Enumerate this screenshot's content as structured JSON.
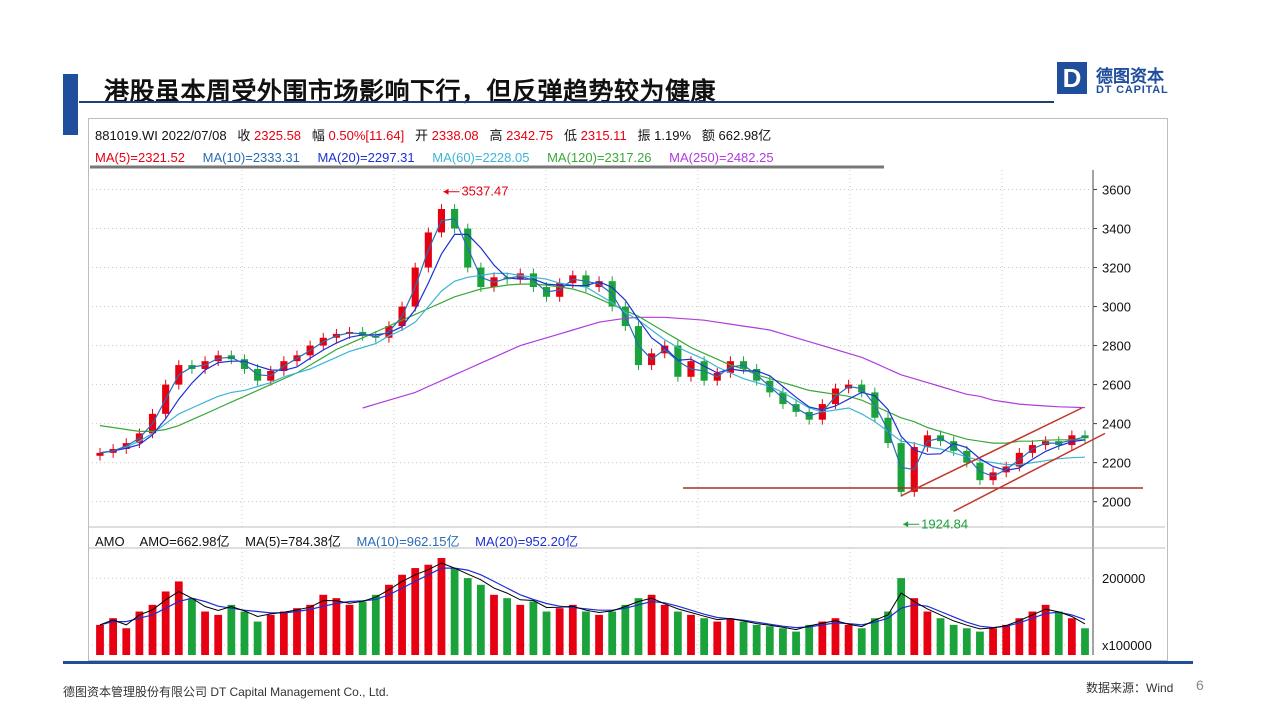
{
  "slide": {
    "title": "港股虽本周受外围市场影响下行，但反弹趋势较为健康",
    "logo_cn": "德图资本",
    "logo_en": "DT CAPITAL",
    "logo_mark": "D",
    "footer_company": "德图资本管理股份有限公司  DT Capital Management  Co., Ltd.",
    "footer_source": "数据来源：Wind",
    "page_number": "6",
    "accent_color": "#1f4e9c"
  },
  "quote": {
    "code_date": "881019.WI 2022/07/08",
    "close_label": "收",
    "close": "2325.58",
    "change_label": "幅",
    "change": "0.50%[11.64]",
    "open_label": "开",
    "open": "2338.08",
    "high_label": "高",
    "high": "2342.75",
    "low_label": "低",
    "low": "2315.11",
    "amplitude_label": "振",
    "amplitude": "1.19%",
    "amount_label": "额",
    "amount": "662.98亿"
  },
  "ma": {
    "ma5": "MA(5)=2321.52",
    "ma10": "MA(10)=2333.31",
    "ma20": "MA(20)=2297.31",
    "ma60": "MA(60)=2228.05",
    "ma120": "MA(120)=2317.26",
    "ma250": "MA(250)=2482.25"
  },
  "volume_header": {
    "label": "AMO",
    "amo": "AMO=662.98亿",
    "ma5": "MA(5)=784.38亿",
    "ma10": "MA(10)=962.15亿",
    "ma20": "MA(20)=952.20亿"
  },
  "chart_data": {
    "type": "line",
    "price": {
      "yticks": [
        2000,
        2200,
        2400,
        2600,
        2800,
        3000,
        3200,
        3400,
        3600
      ],
      "ylim": [
        1870,
        3700
      ],
      "close": [
        2250,
        2270,
        2300,
        2350,
        2450,
        2600,
        2700,
        2680,
        2720,
        2750,
        2730,
        2680,
        2620,
        2670,
        2720,
        2750,
        2800,
        2840,
        2860,
        2870,
        2850,
        2840,
        2900,
        3000,
        3200,
        3380,
        3500,
        3400,
        3200,
        3100,
        3150,
        3140,
        3170,
        3100,
        3050,
        3120,
        3160,
        3100,
        3130,
        3000,
        2900,
        2700,
        2760,
        2800,
        2640,
        2720,
        2620,
        2660,
        2720,
        2680,
        2620,
        2560,
        2500,
        2460,
        2420,
        2500,
        2580,
        2600,
        2560,
        2430,
        2300,
        2050,
        2280,
        2340,
        2310,
        2260,
        2200,
        2110,
        2150,
        2180,
        2250,
        2290,
        2310,
        2290,
        2340,
        2325
      ],
      "ma60": [
        2250,
        2260,
        2280,
        2310,
        2350,
        2400,
        2450,
        2480,
        2510,
        2540,
        2560,
        2570,
        2590,
        2610,
        2640,
        2660,
        2680,
        2710,
        2740,
        2770,
        2790,
        2810,
        2850,
        2880,
        2920,
        3000,
        3080,
        3130,
        3150,
        3160,
        3170,
        3170,
        3160,
        3150,
        3140,
        3120,
        3110,
        3100,
        3060,
        3020,
        2970,
        2930,
        2880,
        2830,
        2790,
        2760,
        2730,
        2690,
        2660,
        2630,
        2610,
        2590,
        2560,
        2520,
        2480,
        2460,
        2470,
        2480,
        2450,
        2410,
        2360,
        2310,
        2300,
        2280,
        2270,
        2250,
        2230,
        2210,
        2200,
        2190,
        2190,
        2200,
        2210,
        2220,
        2225,
        2228
      ],
      "ma120": [
        2390,
        2380,
        2370,
        2360,
        2360,
        2370,
        2390,
        2420,
        2450,
        2480,
        2510,
        2540,
        2570,
        2600,
        2630,
        2660,
        2700,
        2740,
        2780,
        2810,
        2840,
        2870,
        2900,
        2930,
        2960,
        2990,
        3020,
        3050,
        3070,
        3090,
        3100,
        3110,
        3115,
        3115,
        3110,
        3100,
        3090,
        3070,
        3040,
        3010,
        2980,
        2950,
        2910,
        2870,
        2830,
        2790,
        2760,
        2730,
        2700,
        2680,
        2650,
        2630,
        2610,
        2590,
        2570,
        2560,
        2550,
        2540,
        2520,
        2490,
        2460,
        2430,
        2410,
        2380,
        2360,
        2340,
        2320,
        2310,
        2300,
        2300,
        2310,
        2310,
        2315,
        2317,
        2317,
        2317
      ],
      "ma250": [
        null,
        null,
        null,
        null,
        null,
        null,
        null,
        null,
        null,
        null,
        null,
        null,
        null,
        null,
        null,
        null,
        null,
        null,
        null,
        null,
        2480,
        2500,
        2520,
        2540,
        2560,
        2590,
        2620,
        2650,
        2680,
        2710,
        2740,
        2770,
        2800,
        2820,
        2840,
        2860,
        2880,
        2900,
        2920,
        2930,
        2940,
        2945,
        2945,
        2945,
        2940,
        2935,
        2930,
        2920,
        2910,
        2900,
        2890,
        2880,
        2860,
        2840,
        2820,
        2800,
        2780,
        2760,
        2740,
        2710,
        2680,
        2650,
        2630,
        2610,
        2590,
        2570,
        2550,
        2540,
        2520,
        2510,
        2500,
        2495,
        2490,
        2486,
        2484,
        2482
      ],
      "annotations": [
        {
          "text": "3537.47",
          "value": 3537.47,
          "index": 26
        },
        {
          "text": "1924.84",
          "value": 1924.84,
          "index": 61
        }
      ],
      "support_level": 2070,
      "channel": {
        "upper": [
          [
            61,
            2030
          ],
          [
            74,
            2480
          ]
        ],
        "lower": [
          [
            65,
            1950
          ],
          [
            75,
            2350
          ]
        ]
      }
    },
    "volume": {
      "yticks": [
        100000,
        200000
      ],
      "ytick_labels": [
        "x100000",
        "200000"
      ],
      "ylim": [
        85000,
        245000
      ],
      "values": [
        130000,
        140000,
        125000,
        150000,
        160000,
        180000,
        195000,
        170000,
        150000,
        145000,
        160000,
        150000,
        135000,
        145000,
        150000,
        155000,
        160000,
        175000,
        170000,
        160000,
        165000,
        175000,
        190000,
        205000,
        215000,
        220000,
        230000,
        215000,
        200000,
        190000,
        175000,
        170000,
        160000,
        165000,
        150000,
        155000,
        160000,
        150000,
        145000,
        150000,
        160000,
        170000,
        175000,
        160000,
        150000,
        145000,
        140000,
        135000,
        140000,
        135000,
        130000,
        128000,
        125000,
        120000,
        130000,
        135000,
        140000,
        130000,
        125000,
        140000,
        150000,
        200000,
        170000,
        150000,
        140000,
        130000,
        125000,
        120000,
        125000,
        130000,
        140000,
        150000,
        160000,
        150000,
        140000,
        125000
      ],
      "ma": [
        130000,
        135000,
        135000,
        140000,
        145000,
        155000,
        165000,
        170000,
        165000,
        158000,
        155000,
        152000,
        150000,
        148000,
        148000,
        150000,
        153000,
        158000,
        162000,
        165000,
        166000,
        168000,
        175000,
        185000,
        195000,
        205000,
        215000,
        215000,
        212000,
        205000,
        195000,
        185000,
        175000,
        168000,
        162000,
        158000,
        156000,
        154000,
        152000,
        152000,
        155000,
        160000,
        165000,
        163000,
        158000,
        152000,
        146000,
        141000,
        139000,
        137000,
        134000,
        131000,
        128000,
        126000,
        127000,
        130000,
        133000,
        132000,
        130000,
        134000,
        140000,
        155000,
        160000,
        158000,
        150000,
        142000,
        134000,
        128000,
        126000,
        128000,
        133000,
        140000,
        147000,
        149000,
        145000,
        138000
      ]
    },
    "colors": {
      "up": "#e60012",
      "down": "#1aa33a",
      "ma5": "#000000",
      "ma10": "#2a6cb5",
      "ma20": "#1c2fd6",
      "ma60": "#3eb4d6",
      "ma120": "#3aa83a",
      "ma250": "#b13ae0"
    }
  }
}
